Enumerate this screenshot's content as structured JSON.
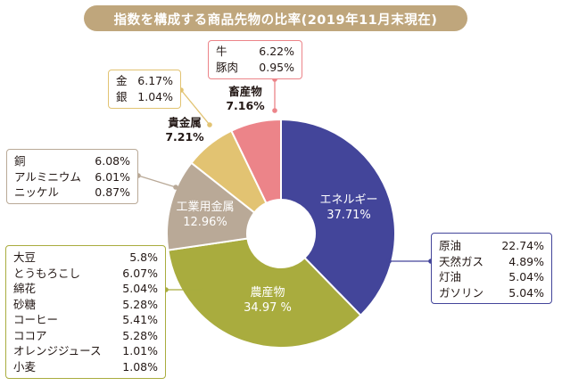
{
  "title": "指数を構成する商品先物の比率(2019年11月末現在)",
  "chart_data": {
    "type": "pie",
    "title": "指数を構成する商品先物の比率(2019年11月末現在)",
    "donut": true,
    "slices": [
      {
        "name": "エネルギー",
        "value": 37.71,
        "value_label": "37.71%",
        "color": "#43459a"
      },
      {
        "name": "農産物",
        "value": 34.97,
        "value_label": "34.97 %",
        "color": "#a9ac3e"
      },
      {
        "name": "工業用金属",
        "value": 12.96,
        "value_label": "12.96%",
        "color": "#b9a997"
      },
      {
        "name": "貴金属",
        "value": 7.21,
        "value_label": "7.21%",
        "color": "#e2c372"
      },
      {
        "name": "畜産物",
        "value": 7.16,
        "value_label": "7.16%",
        "color": "#ec8489"
      }
    ],
    "breakdown": {
      "energy": [
        {
          "name": "原油",
          "value": 22.74,
          "label": "22.74%"
        },
        {
          "name": "天然ガス",
          "value": 4.89,
          "label": "4.89%"
        },
        {
          "name": "灯油",
          "value": 5.04,
          "label": "5.04%"
        },
        {
          "name": "ガソリン",
          "value": 5.04,
          "label": "5.04%"
        }
      ],
      "agriculture": [
        {
          "name": "大豆",
          "value": 5.8,
          "label": "5.8%"
        },
        {
          "name": "とうもろこし",
          "value": 6.07,
          "label": "6.07%"
        },
        {
          "name": "綿花",
          "value": 5.04,
          "label": "5.04%"
        },
        {
          "name": "砂糖",
          "value": 5.28,
          "label": "5.28%"
        },
        {
          "name": "コーヒー",
          "value": 5.41,
          "label": "5.41%"
        },
        {
          "name": "ココア",
          "value": 5.28,
          "label": "5.28%"
        },
        {
          "name": "オレンジジュース",
          "value": 1.01,
          "label": "1.01%"
        },
        {
          "name": "小麦",
          "value": 1.08,
          "label": "1.08%"
        }
      ],
      "industrial_metals": [
        {
          "name": "銅",
          "value": 6.08,
          "label": "6.08%"
        },
        {
          "name": "アルミニウム",
          "value": 6.01,
          "label": "6.01%"
        },
        {
          "name": "ニッケル",
          "value": 0.87,
          "label": "0.87%"
        }
      ],
      "precious_metals": [
        {
          "name": "金",
          "value": 6.17,
          "label": "6.17%"
        },
        {
          "name": "銀",
          "value": 1.04,
          "label": "1.04%"
        }
      ],
      "livestock": [
        {
          "name": "牛",
          "value": 6.22,
          "label": "6.22%"
        },
        {
          "name": "豚肉",
          "value": 0.95,
          "label": "0.95%"
        }
      ]
    }
  }
}
